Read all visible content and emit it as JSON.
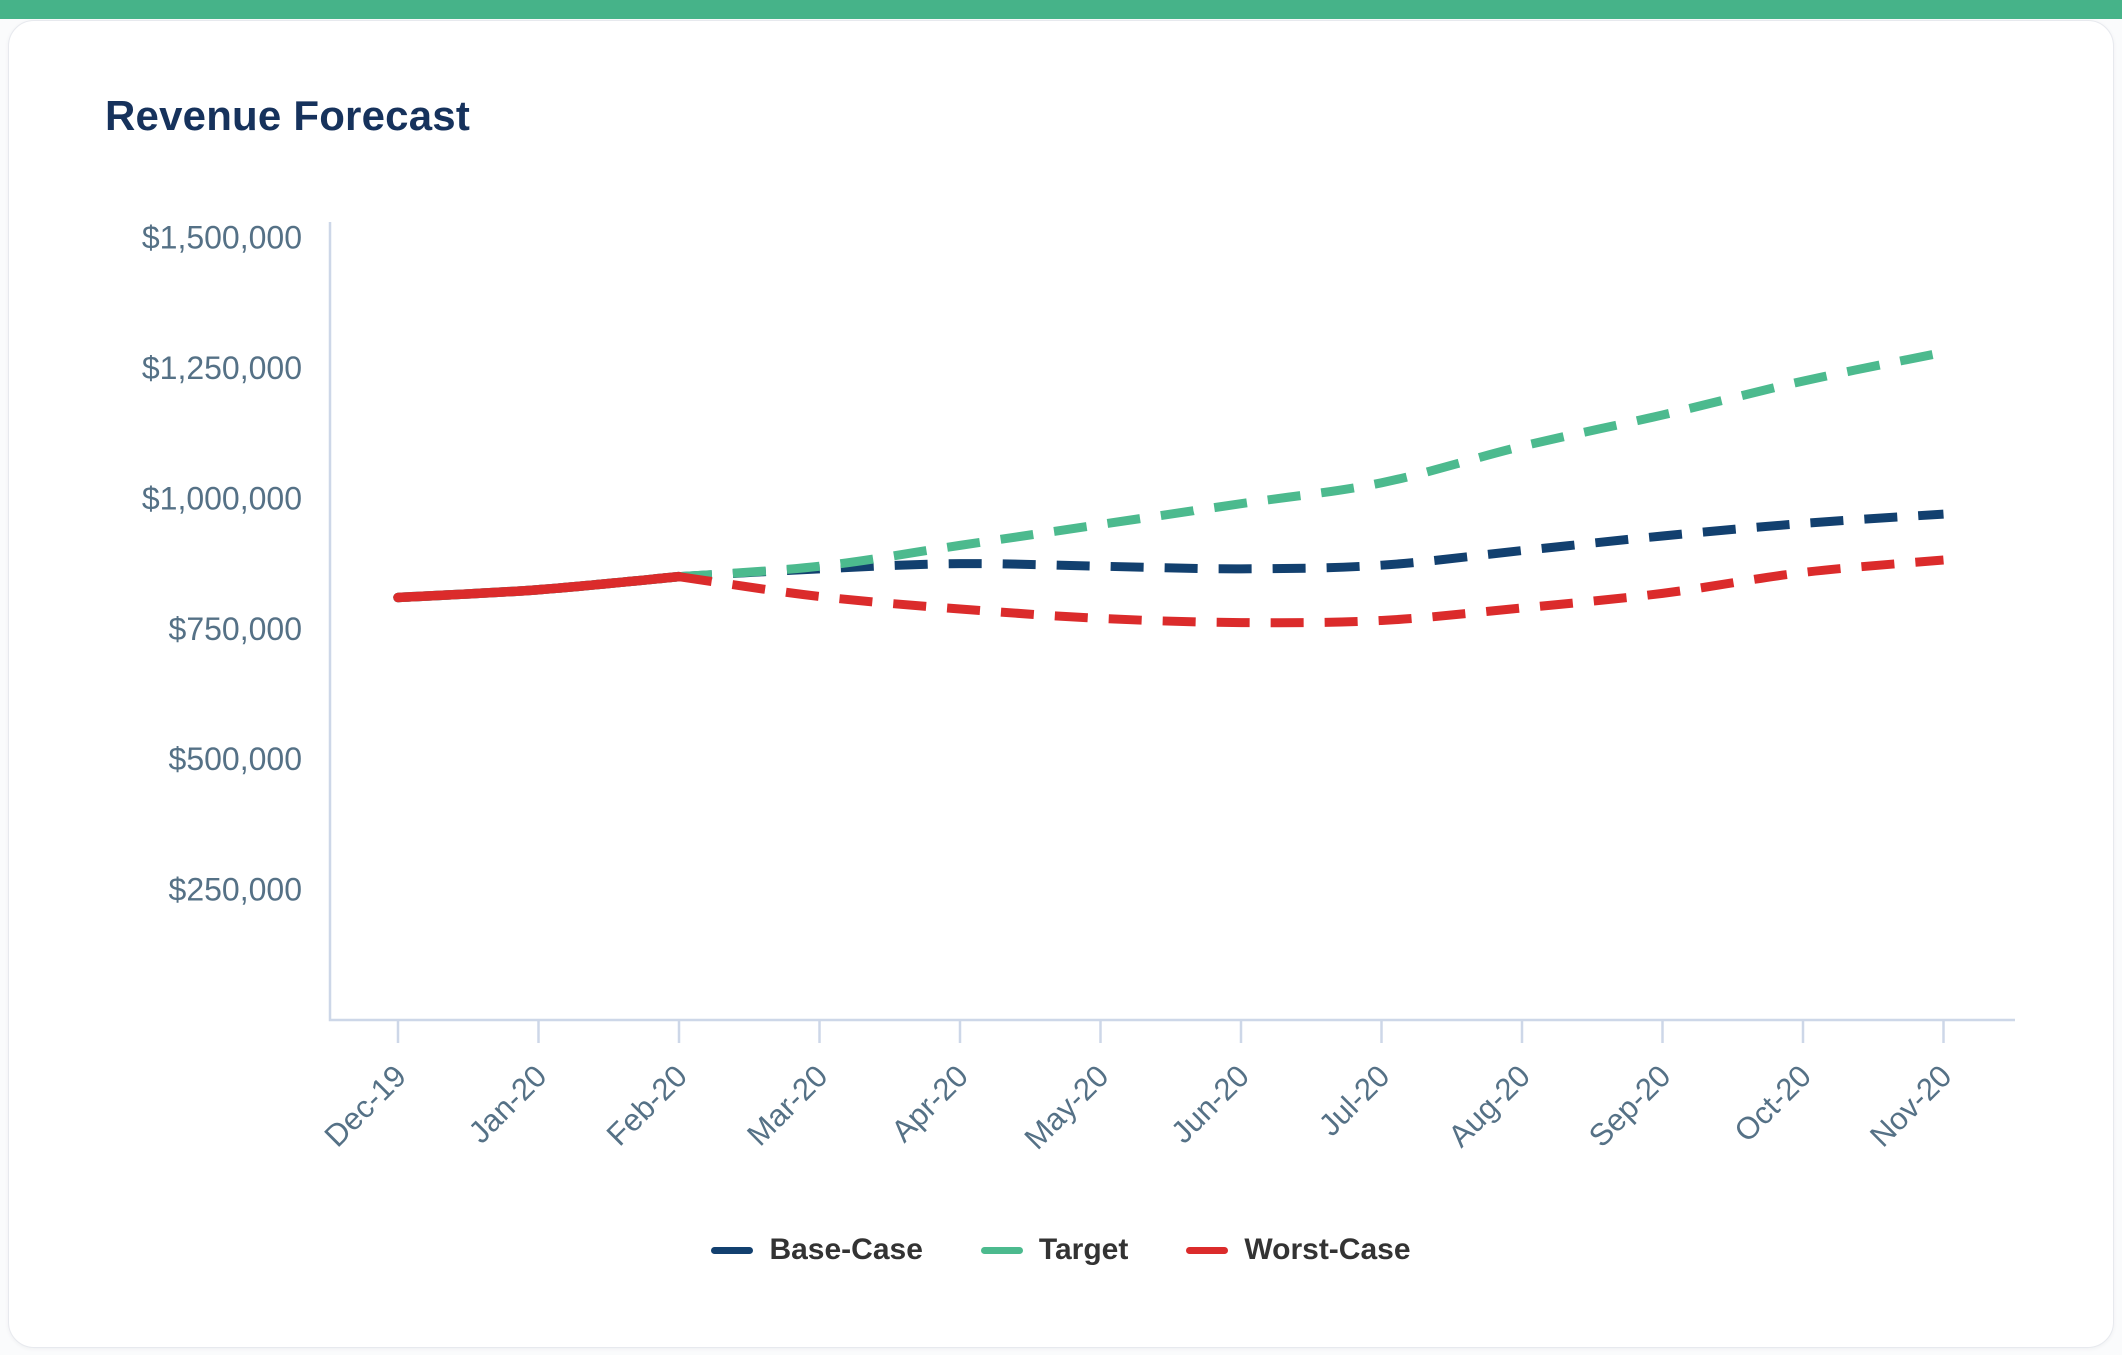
{
  "page": {
    "accent_bar_color": "#46b389"
  },
  "card": {
    "background": "#ffffff",
    "border_color": "#e7e9ee"
  },
  "chart_data": {
    "type": "line",
    "title": "Revenue Forecast",
    "title_color": "#16325c",
    "categories": [
      "Dec-19",
      "Jan-20",
      "Feb-20",
      "Mar-20",
      "Apr-20",
      "May-20",
      "Jun-20",
      "Jul-20",
      "Aug-20",
      "Sep-20",
      "Oct-20",
      "Nov-20"
    ],
    "series": [
      {
        "name": "Base-Case",
        "color": "#12406f",
        "line_style": "solid-then-dashed",
        "values": [
          810000,
          825000,
          850000,
          865000,
          875000,
          870000,
          865000,
          872000,
          900000,
          928000,
          952000,
          970000
        ]
      },
      {
        "name": "Target",
        "color": "#4cba8e",
        "line_style": "solid-then-dashed",
        "values": [
          810000,
          825000,
          850000,
          870000,
          910000,
          950000,
          990000,
          1030000,
          1100000,
          1160000,
          1225000,
          1280000
        ]
      },
      {
        "name": "Worst-Case",
        "color": "#db2b2b",
        "line_style": "solid-then-dashed",
        "values": [
          810000,
          825000,
          850000,
          812000,
          788000,
          770000,
          762000,
          766000,
          790000,
          818000,
          858000,
          882000
        ]
      }
    ],
    "solid_until_index": 2,
    "forecast_start_category": "Feb-20",
    "xlabel": "",
    "ylabel": "",
    "ylim": [
      0,
      1530000
    ],
    "yticks": [
      250000,
      500000,
      750000,
      1000000,
      1250000,
      1500000
    ],
    "ytick_labels": [
      "$250,000",
      "$500,000",
      "$750,000",
      "$1,000,000",
      "$1,250,000",
      "$1,500,000"
    ],
    "grid": false,
    "legend_position": "bottom-center",
    "axis_color": "#cdd7e8",
    "tick_label_color": "#557186",
    "legend_text_color": "#333333"
  }
}
